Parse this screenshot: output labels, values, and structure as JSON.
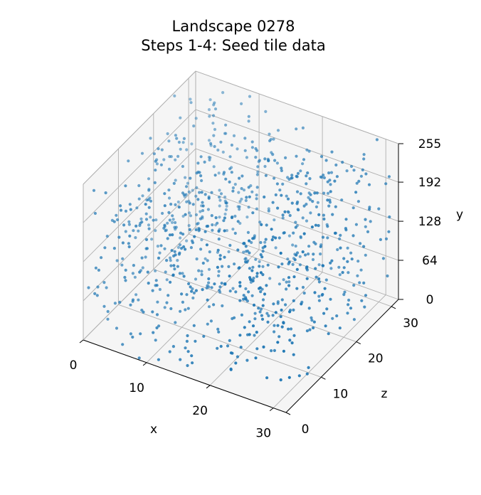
{
  "chart_data": {
    "type": "scatter",
    "title_line1": "Landscape 0278",
    "title_line2": "Steps 1-4: Seed tile data",
    "xlabel": "x",
    "ylabel": "y",
    "zlabel": "z",
    "xlim": [
      0,
      32
    ],
    "ylim": [
      0,
      255
    ],
    "zlim": [
      0,
      32
    ],
    "x_ticks": [
      "0",
      "10",
      "20",
      "30"
    ],
    "y_ticks": [
      "0",
      "64",
      "128",
      "192",
      "255"
    ],
    "z_ticks": [
      "0",
      "10",
      "20",
      "30"
    ],
    "grid": true,
    "point_count": 900,
    "marker_color": "#1f77b4",
    "pane_color": "#f2f2f2",
    "grid_color": "#b0b0b0"
  }
}
